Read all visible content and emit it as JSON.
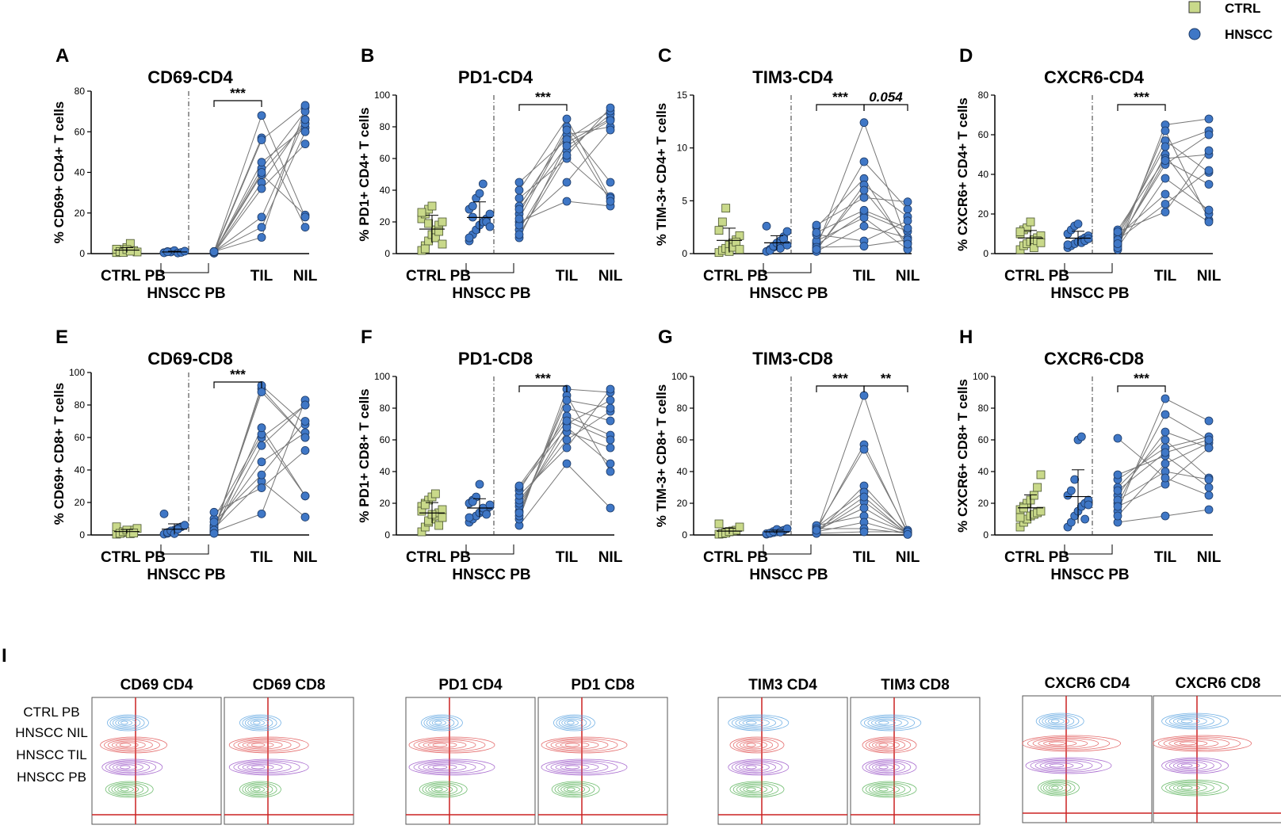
{
  "legend": [
    {
      "name": "CTRL",
      "marker": "square",
      "color": "#c9d98a"
    },
    {
      "name": "HNSCC",
      "marker": "circle",
      "color": "#3f77c6"
    }
  ],
  "colors": {
    "ctrl": "#c9d98a",
    "hnscc": "#3f77c6",
    "line": "#777777",
    "gate": "#cc2222"
  },
  "chart_data": [
    {
      "type": "scatter",
      "letter": "A",
      "title": "CD69-CD4",
      "ylabel": "% CD69+ CD4+ T cells",
      "ylim": [
        0,
        80
      ],
      "yticks": [
        0,
        20,
        40,
        60,
        80
      ],
      "groups": [
        "CTRL PB",
        "TIL",
        "NIL"
      ],
      "group_label": "HNSCC PB",
      "ctrl_pb": [
        0.5,
        1,
        2,
        3,
        5,
        1.5,
        0.8,
        2.2,
        1,
        0.6,
        2,
        1.2
      ],
      "hnscc_pb": [
        0.5,
        1,
        0.8,
        1.5,
        0.3,
        0.6,
        1.2,
        0.4,
        0.9
      ],
      "paired": [
        [
          1,
          8,
          72
        ],
        [
          0.5,
          42,
          70
        ],
        [
          1,
          57,
          13
        ],
        [
          0.5,
          35,
          66
        ],
        [
          1,
          39,
          19
        ],
        [
          0.2,
          45,
          62
        ],
        [
          1,
          13,
          60
        ],
        [
          0.5,
          56,
          73
        ],
        [
          1,
          68,
          18
        ],
        [
          0.3,
          32,
          54
        ],
        [
          0.8,
          40,
          64
        ],
        [
          1,
          18,
          66
        ]
      ],
      "sig": [
        {
          "label": "***",
          "from": "pb",
          "to": "til"
        }
      ]
    },
    {
      "type": "scatter",
      "letter": "B",
      "title": "PD1-CD4",
      "ylabel": "% PD1+ CD4+ T cells",
      "ylim": [
        0,
        100
      ],
      "yticks": [
        0,
        20,
        40,
        60,
        80,
        100
      ],
      "groups": [
        "CTRL PB",
        "TIL",
        "NIL"
      ],
      "group_label": "HNSCC PB",
      "ctrl_pb": [
        2,
        5,
        8,
        12,
        15,
        18,
        20,
        22,
        25,
        28,
        30,
        10,
        14,
        6,
        26,
        3,
        19
      ],
      "hnscc_pb": [
        8,
        12,
        15,
        18,
        20,
        22,
        25,
        28,
        30,
        35,
        38,
        44,
        20,
        17,
        10,
        23
      ],
      "paired": [
        [
          10,
          70,
          85
        ],
        [
          15,
          65,
          88
        ],
        [
          20,
          33,
          30
        ],
        [
          25,
          80,
          45
        ],
        [
          30,
          75,
          80
        ],
        [
          35,
          60,
          36
        ],
        [
          40,
          85,
          35
        ],
        [
          45,
          72,
          90
        ],
        [
          18,
          45,
          78
        ],
        [
          28,
          68,
          84
        ],
        [
          22,
          78,
          33
        ],
        [
          12,
          62,
          92
        ]
      ],
      "sig": [
        {
          "label": "***",
          "from": "pb",
          "to": "til"
        }
      ]
    },
    {
      "type": "scatter",
      "letter": "C",
      "title": "TIM3-CD4",
      "ylabel": "% TIM-3+ CD4+ T cells",
      "ylim": [
        0,
        15
      ],
      "yticks": [
        0,
        5,
        10,
        15
      ],
      "groups": [
        "CTRL PB",
        "TIL",
        "NIL"
      ],
      "group_label": "HNSCC PB",
      "ctrl_pb": [
        0.1,
        0.3,
        0.5,
        0.8,
        1,
        1.3,
        1.7,
        2.2,
        3,
        4.3,
        0.2,
        0.6,
        1.1,
        0.4
      ],
      "hnscc_pb": [
        0.2,
        0.4,
        0.6,
        0.9,
        1.2,
        1.6,
        2.1,
        2.6,
        0.3,
        0.7,
        1,
        0.5,
        1.4,
        0.8
      ],
      "paired": [
        [
          0.5,
          12.4,
          1
        ],
        [
          1,
          8.7,
          4.2
        ],
        [
          2.5,
          7.1,
          0.5
        ],
        [
          0.3,
          6.5,
          3.5
        ],
        [
          2.7,
          5.3,
          4.9
        ],
        [
          0.8,
          3.8,
          2.1
        ],
        [
          1.2,
          3.4,
          0.4
        ],
        [
          0.2,
          2.6,
          1.5
        ],
        [
          1.8,
          1.2,
          3.1
        ],
        [
          0.6,
          0.7,
          1.3
        ],
        [
          2,
          4.1,
          2.4
        ],
        [
          0.4,
          6,
          0.9
        ]
      ],
      "sig": [
        {
          "label": "***",
          "from": "pb",
          "to": "til"
        },
        {
          "label": "0.054",
          "from": "til",
          "to": "nil",
          "italic": true
        }
      ]
    },
    {
      "type": "scatter",
      "letter": "D",
      "title": "CXCR6-CD4",
      "ylabel": "% CXCR6+ CD4+ T cells",
      "ylim": [
        0,
        80
      ],
      "yticks": [
        0,
        20,
        40,
        60,
        80
      ],
      "groups": [
        "CTRL PB",
        "TIL",
        "NIL"
      ],
      "group_label": "HNSCC PB",
      "ctrl_pb": [
        2,
        4,
        5,
        6,
        7,
        8,
        9,
        10,
        12,
        13,
        16,
        3,
        6.5,
        5.5,
        11
      ],
      "hnscc_pb": [
        3,
        4,
        5,
        6,
        7,
        8,
        9,
        10,
        12,
        14,
        15,
        5.5,
        6.5,
        7.5,
        4.5
      ],
      "paired": [
        [
          2,
          65,
          68
        ],
        [
          5,
          62,
          17
        ],
        [
          8,
          57,
          41
        ],
        [
          10,
          54,
          62
        ],
        [
          4,
          50,
          20
        ],
        [
          12,
          48,
          50
        ],
        [
          6,
          45,
          60
        ],
        [
          3,
          38,
          22
        ],
        [
          9,
          30,
          16
        ],
        [
          7,
          25,
          42
        ],
        [
          11,
          21,
          52
        ],
        [
          5,
          47,
          35
        ]
      ],
      "sig": [
        {
          "label": "***",
          "from": "pb",
          "to": "til"
        }
      ]
    },
    {
      "type": "scatter",
      "letter": "E",
      "title": "CD69-CD8",
      "ylabel": "% CD69+ CD8+ T cells",
      "ylim": [
        0,
        100
      ],
      "yticks": [
        0,
        20,
        40,
        60,
        80,
        100
      ],
      "groups": [
        "CTRL PB",
        "TIL",
        "NIL"
      ],
      "group_label": "HNSCC PB",
      "ctrl_pb": [
        0.5,
        1,
        1.5,
        2,
        2.5,
        3,
        4,
        5,
        1,
        2,
        3,
        0.8,
        1.2
      ],
      "hnscc_pb": [
        0.5,
        1,
        2,
        3,
        4,
        5,
        6,
        13,
        1.5,
        2.5,
        0.8,
        3.5
      ],
      "paired": [
        [
          2,
          13,
          83
        ],
        [
          4,
          33,
          11
        ],
        [
          3,
          90,
          60
        ],
        [
          6,
          60,
          80
        ],
        [
          10,
          62,
          24
        ],
        [
          14,
          29,
          52
        ],
        [
          1,
          92,
          68
        ],
        [
          5,
          45,
          63
        ],
        [
          2,
          55,
          80
        ],
        [
          8,
          37,
          70
        ],
        [
          3,
          88,
          60
        ],
        [
          1,
          66,
          24
        ]
      ],
      "sig": [
        {
          "label": "***",
          "from": "pb",
          "to": "til"
        }
      ]
    },
    {
      "type": "scatter",
      "letter": "F",
      "title": "PD1-CD8",
      "ylabel": "% PD1+ CD8+ T cells",
      "ylim": [
        0,
        100
      ],
      "yticks": [
        0,
        20,
        40,
        60,
        80,
        100
      ],
      "groups": [
        "CTRL PB",
        "TIL",
        "NIL"
      ],
      "group_label": "HNSCC PB",
      "ctrl_pb": [
        2,
        5,
        8,
        10,
        12,
        14,
        16,
        18,
        20,
        22,
        24,
        26,
        6,
        11,
        15,
        19,
        9,
        13
      ],
      "hnscc_pb": [
        8,
        10,
        12,
        14,
        15,
        16,
        18,
        20,
        22,
        24,
        32,
        17,
        13,
        19,
        11,
        21
      ],
      "paired": [
        [
          6,
          45,
          17
        ],
        [
          10,
          92,
          90
        ],
        [
          12,
          88,
          40
        ],
        [
          15,
          80,
          72
        ],
        [
          18,
          70,
          85
        ],
        [
          20,
          65,
          55
        ],
        [
          22,
          60,
          78
        ],
        [
          25,
          55,
          92
        ],
        [
          28,
          75,
          63
        ],
        [
          30,
          68,
          45
        ],
        [
          14,
          85,
          80
        ],
        [
          31,
          72,
          60
        ]
      ],
      "sig": [
        {
          "label": "***",
          "from": "pb",
          "to": "til"
        }
      ]
    },
    {
      "type": "scatter",
      "letter": "G",
      "title": "TIM3-CD8",
      "ylabel": "% TIM-3+ CD8+ T cells",
      "ylim": [
        0,
        100
      ],
      "yticks": [
        0,
        20,
        40,
        60,
        80,
        100
      ],
      "groups": [
        "CTRL PB",
        "TIL",
        "NIL"
      ],
      "group_label": "HNSCC PB",
      "ctrl_pb": [
        0.5,
        1,
        1.5,
        2,
        2.5,
        3,
        5,
        7,
        0.8,
        1.2,
        2.2
      ],
      "hnscc_pb": [
        0.5,
        1,
        1.5,
        2,
        2.5,
        3,
        4,
        0.8,
        1.2,
        2.2,
        3.5,
        1.8
      ],
      "paired": [
        [
          2,
          88,
          3
        ],
        [
          3,
          57,
          1
        ],
        [
          4,
          54,
          2
        ],
        [
          1,
          31,
          0.5
        ],
        [
          5,
          27,
          2
        ],
        [
          2,
          21,
          1
        ],
        [
          3,
          17,
          0.8
        ],
        [
          6,
          12,
          1.5
        ],
        [
          2,
          8,
          0.5
        ],
        [
          4,
          4,
          1
        ],
        [
          1,
          2,
          2
        ],
        [
          3,
          24,
          0.3
        ]
      ],
      "sig": [
        {
          "label": "***",
          "from": "pb",
          "to": "til"
        },
        {
          "label": "**",
          "from": "til",
          "to": "nil"
        }
      ]
    },
    {
      "type": "scatter",
      "letter": "H",
      "title": "CXCR6-CD8",
      "ylabel": "% CXCR6+ CD8+ T cells",
      "ylim": [
        0,
        100
      ],
      "yticks": [
        0,
        20,
        40,
        60,
        80,
        100
      ],
      "groups": [
        "CTRL PB",
        "TIL",
        "NIL"
      ],
      "group_label": "HNSCC PB",
      "ctrl_pb": [
        5,
        8,
        10,
        12,
        13,
        14,
        15,
        16,
        18,
        20,
        22,
        25,
        30,
        38,
        11,
        17
      ],
      "hnscc_pb": [
        5,
        8,
        12,
        15,
        18,
        20,
        22,
        25,
        28,
        35,
        60,
        62,
        10,
        19
      ],
      "paired": [
        [
          8,
          12,
          16
        ],
        [
          15,
          86,
          72
        ],
        [
          20,
          76,
          60
        ],
        [
          25,
          65,
          55
        ],
        [
          30,
          60,
          36
        ],
        [
          35,
          55,
          62
        ],
        [
          38,
          50,
          30
        ],
        [
          12,
          45,
          58
        ],
        [
          22,
          40,
          35
        ],
        [
          18,
          32,
          55
        ],
        [
          28,
          52,
          60
        ],
        [
          61,
          36,
          25
        ]
      ],
      "sig": [
        {
          "label": "***",
          "from": "pb",
          "to": "til"
        }
      ]
    }
  ],
  "panel_i": {
    "letter": "I",
    "row_labels": [
      "CTRL PB",
      "HNSCC NIL",
      "HNSCC TIL",
      "HNSCC PB"
    ],
    "row_colors": [
      "#5aa3e0",
      "#e05555",
      "#9b55c8",
      "#55b055"
    ],
    "plots": [
      {
        "title": "CD69 CD4",
        "spread": [
          0.3,
          0.7,
          0.6,
          0.4
        ]
      },
      {
        "title": "CD69 CD8",
        "spread": [
          0.3,
          0.9,
          0.9,
          0.3
        ]
      },
      {
        "title": "PD1 CD4",
        "spread": [
          0.3,
          1.0,
          1.0,
          0.4
        ]
      },
      {
        "title": "PD1 CD8",
        "spread": [
          0.3,
          1.0,
          1.0,
          0.4
        ]
      },
      {
        "title": "TIM3 CD4",
        "spread": [
          0.6,
          0.5,
          0.6,
          0.5
        ]
      },
      {
        "title": "TIM3 CD8",
        "spread": [
          0.6,
          0.5,
          0.5,
          0.5
        ]
      },
      {
        "title": "CXCR6 CD4",
        "spread": [
          0.4,
          1.2,
          1.0,
          0.3
        ]
      },
      {
        "title": "CXCR6 CD8",
        "spread": [
          0.7,
          1.2,
          0.7,
          0.7
        ]
      }
    ]
  }
}
